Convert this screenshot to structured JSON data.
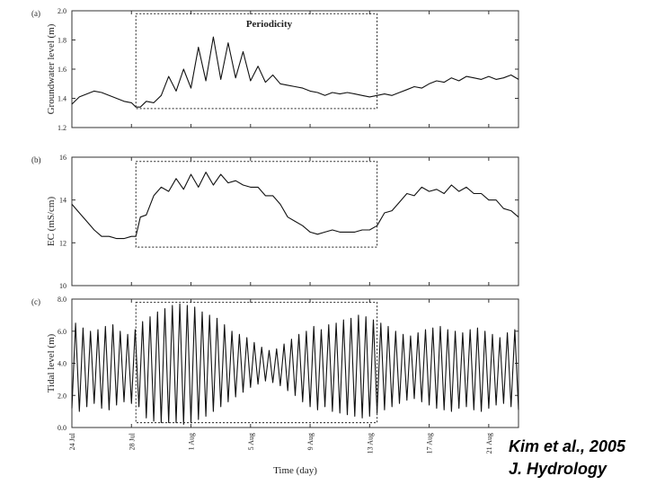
{
  "citation": {
    "line1": "Kim et al., 2005",
    "line2": "J. Hydrology"
  },
  "x_axis": {
    "label": "Time (day)",
    "domain": [
      0,
      30
    ],
    "ticks": [
      {
        "value": 0,
        "label": "24 Jul"
      },
      {
        "value": 4,
        "label": "28 Jul"
      },
      {
        "value": 8,
        "label": "1 Aug"
      },
      {
        "value": 12,
        "label": "5 Aug"
      },
      {
        "value": 16,
        "label": "9 Aug"
      },
      {
        "value": 20,
        "label": "13 Aug"
      },
      {
        "value": 24,
        "label": "17 Aug"
      },
      {
        "value": 28,
        "label": "21 Aug"
      }
    ]
  },
  "chart_data": [
    {
      "type": "line",
      "panel_label": "(a)",
      "ylabel": "Groundwater level (m)",
      "ylim": [
        1.2,
        2.0
      ],
      "yticks": [
        "1.2",
        "1.4",
        "1.6",
        "1.8",
        "2.0"
      ],
      "yticks_values": [
        1.2,
        1.4,
        1.6,
        1.8,
        2.0
      ],
      "annotation": "Periodicity",
      "highlight_box": {
        "x": [
          4.3,
          20.5
        ],
        "y": [
          1.33,
          1.98
        ]
      },
      "x": [
        0,
        0.5,
        1,
        1.5,
        2,
        2.5,
        3,
        3.5,
        4,
        4.3,
        4.6,
        5,
        5.5,
        6,
        6.5,
        7,
        7.5,
        8,
        8.5,
        9,
        9.5,
        10,
        10.5,
        11,
        11.5,
        12,
        12.5,
        13,
        13.5,
        14,
        14.5,
        15,
        15.5,
        16,
        16.5,
        17,
        17.5,
        18,
        18.5,
        19,
        19.5,
        20,
        20.5,
        21,
        21.5,
        22,
        22.5,
        23,
        23.5,
        24,
        24.5,
        25,
        25.5,
        26,
        26.5,
        27,
        27.5,
        28,
        28.5,
        29,
        29.5,
        30
      ],
      "y": [
        1.36,
        1.41,
        1.43,
        1.45,
        1.44,
        1.42,
        1.4,
        1.38,
        1.37,
        1.34,
        1.34,
        1.38,
        1.37,
        1.42,
        1.55,
        1.45,
        1.6,
        1.47,
        1.75,
        1.52,
        1.82,
        1.53,
        1.78,
        1.54,
        1.72,
        1.52,
        1.62,
        1.51,
        1.56,
        1.5,
        1.49,
        1.48,
        1.47,
        1.45,
        1.44,
        1.42,
        1.44,
        1.43,
        1.44,
        1.43,
        1.42,
        1.41,
        1.42,
        1.43,
        1.42,
        1.44,
        1.46,
        1.48,
        1.47,
        1.5,
        1.52,
        1.51,
        1.54,
        1.52,
        1.55,
        1.54,
        1.53,
        1.55,
        1.53,
        1.54,
        1.56,
        1.53
      ]
    },
    {
      "type": "line",
      "panel_label": "(b)",
      "ylabel": "EC (mS/cm)",
      "ylim": [
        10,
        16
      ],
      "yticks": [
        "10",
        "12",
        "14",
        "16"
      ],
      "yticks_values": [
        10,
        12,
        14,
        16
      ],
      "highlight_box": {
        "x": [
          4.3,
          20.5
        ],
        "y": [
          11.8,
          15.8
        ]
      },
      "x": [
        0,
        0.5,
        1,
        1.5,
        2,
        2.5,
        3,
        3.5,
        4,
        4.3,
        4.6,
        5,
        5.5,
        6,
        6.5,
        7,
        7.5,
        8,
        8.5,
        9,
        9.5,
        10,
        10.5,
        11,
        11.5,
        12,
        12.5,
        13,
        13.5,
        14,
        14.5,
        15,
        15.5,
        16,
        16.5,
        17,
        17.5,
        18,
        18.5,
        19,
        19.5,
        20,
        20.5,
        21,
        21.5,
        22,
        22.5,
        23,
        23.5,
        24,
        24.5,
        25,
        25.5,
        26,
        26.5,
        27,
        27.5,
        28,
        28.5,
        29,
        29.5,
        30
      ],
      "y": [
        13.8,
        13.4,
        13.0,
        12.6,
        12.3,
        12.3,
        12.2,
        12.2,
        12.3,
        12.3,
        13.2,
        13.3,
        14.2,
        14.6,
        14.4,
        15.0,
        14.5,
        15.2,
        14.6,
        15.3,
        14.7,
        15.2,
        14.8,
        14.9,
        14.7,
        14.6,
        14.6,
        14.2,
        14.2,
        13.8,
        13.2,
        13.0,
        12.8,
        12.5,
        12.4,
        12.5,
        12.6,
        12.5,
        12.5,
        12.5,
        12.6,
        12.6,
        12.8,
        13.4,
        13.5,
        13.9,
        14.3,
        14.2,
        14.6,
        14.4,
        14.5,
        14.3,
        14.7,
        14.4,
        14.6,
        14.3,
        14.3,
        14.0,
        14.0,
        13.6,
        13.5,
        13.2
      ]
    },
    {
      "type": "line",
      "panel_label": "(c)",
      "ylabel": "Tidal level (m)",
      "ylim": [
        0,
        8
      ],
      "yticks": [
        "0.0",
        "2.0",
        "4.0",
        "6.0",
        "8.0"
      ],
      "yticks_values": [
        0,
        2,
        4,
        6,
        8
      ],
      "highlight_box": {
        "x": [
          4.3,
          20.5
        ],
        "y": [
          0.3,
          7.8
        ]
      },
      "x_start": 0,
      "x_step": 0.25,
      "y": [
        1.2,
        6.5,
        1.0,
        6.2,
        1.3,
        6.0,
        1.5,
        6.1,
        1.2,
        6.3,
        1.1,
        6.4,
        1.4,
        6.0,
        1.6,
        5.8,
        1.5,
        6.1,
        1.3,
        6.6,
        0.6,
        6.9,
        0.4,
        7.2,
        0.3,
        7.4,
        0.3,
        7.6,
        0.3,
        7.7,
        0.2,
        7.6,
        0.3,
        7.5,
        0.5,
        7.2,
        0.7,
        7.0,
        1.0,
        6.8,
        1.3,
        6.4,
        1.6,
        6.0,
        1.9,
        5.8,
        2.2,
        5.6,
        2.5,
        5.3,
        2.7,
        5.0,
        2.9,
        4.8,
        2.8,
        4.9,
        2.6,
        5.2,
        2.3,
        5.5,
        2.0,
        5.8,
        1.6,
        6.0,
        1.3,
        6.3,
        1.1,
        6.1,
        1.3,
        6.4,
        1.0,
        6.5,
        0.9,
        6.7,
        0.8,
        6.8,
        0.7,
        7.0,
        0.6,
        6.9,
        0.7,
        6.7,
        0.9,
        6.5,
        1.1,
        6.3,
        1.3,
        6.0,
        1.5,
        5.8,
        1.7,
        5.7,
        1.8,
        5.9,
        1.6,
        6.1,
        1.4,
        6.2,
        1.2,
        6.3,
        1.1,
        6.1,
        1.0,
        6.0,
        1.2,
        5.9,
        1.3,
        6.1,
        1.1,
        6.2,
        1.0,
        6.0,
        1.2,
        5.8,
        1.4,
        5.6,
        1.5,
        5.9,
        1.3,
        6.1,
        1.1
      ]
    }
  ]
}
